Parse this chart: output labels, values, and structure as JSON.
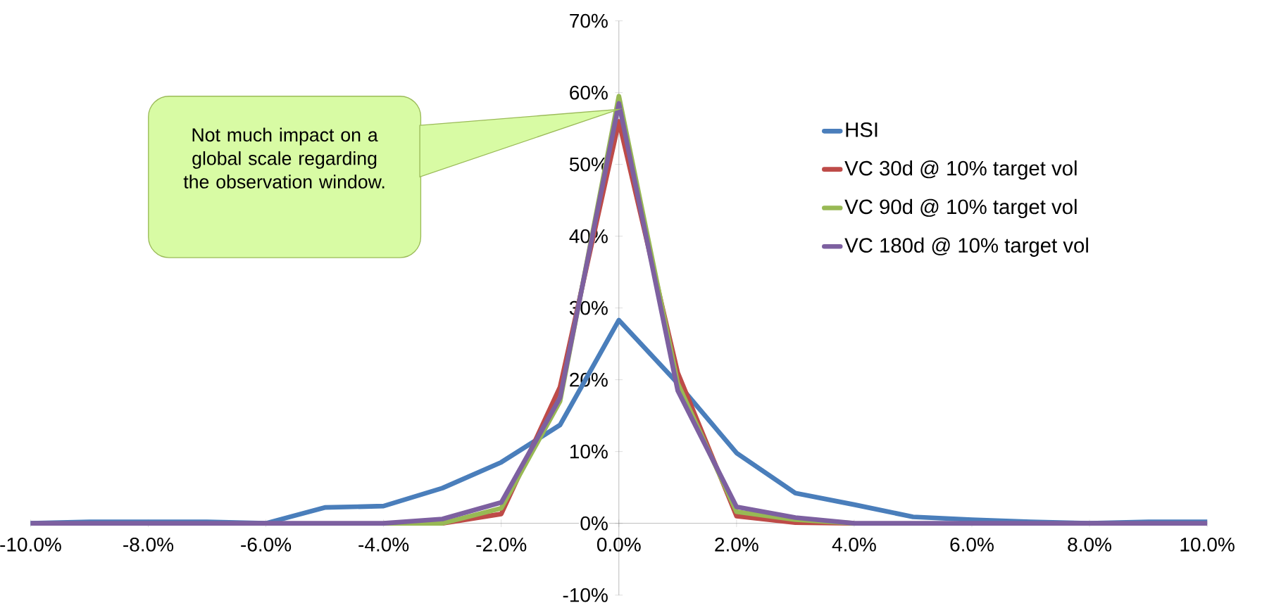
{
  "chart_data": {
    "type": "line",
    "x": [
      -10,
      -9,
      -8,
      -7,
      -6,
      -5,
      -4,
      -3,
      -2,
      -1,
      0,
      1,
      2,
      3,
      4,
      5,
      6,
      7,
      8,
      9,
      10
    ],
    "series": [
      {
        "name": "HSI",
        "color": "#4a7ebb",
        "values": [
          0,
          0.2,
          0.2,
          0.2,
          0,
          2.2,
          2.4,
          4.9,
          8.5,
          13.7,
          28.3,
          19.5,
          9.8,
          4.2,
          2.6,
          0.9,
          0.5,
          0.2,
          0,
          0.2,
          0.2
        ]
      },
      {
        "name": "VC 30d @ 10% target vol",
        "color": "#be4b48",
        "values": [
          null,
          null,
          null,
          null,
          null,
          null,
          null,
          0,
          1.3,
          19,
          56,
          21,
          1.0,
          0.1,
          0,
          null,
          null,
          null,
          null,
          null,
          null
        ]
      },
      {
        "name": "VC 90d @ 10% target vol",
        "color": "#98b954",
        "values": [
          null,
          null,
          null,
          null,
          null,
          null,
          0,
          0,
          2.1,
          17,
          59.5,
          19.5,
          1.6,
          0.5,
          0,
          null,
          null,
          null,
          null,
          null,
          null
        ]
      },
      {
        "name": "VC 180d @ 10% target vol",
        "color": "#7d60a0",
        "values": [
          0,
          0,
          0,
          0,
          0,
          0,
          0,
          0.6,
          2.9,
          17.5,
          58.5,
          18.5,
          2.3,
          0.8,
          0,
          0,
          0,
          0,
          0,
          0,
          0
        ]
      }
    ],
    "xlim": [
      -10,
      10
    ],
    "ylim": [
      -10,
      70
    ],
    "xticks": [
      {
        "value": -10,
        "label": "-10.0%"
      },
      {
        "value": -8,
        "label": "-8.0%"
      },
      {
        "value": -6,
        "label": "-6.0%"
      },
      {
        "value": -4,
        "label": "-4.0%"
      },
      {
        "value": -2,
        "label": "-2.0%"
      },
      {
        "value": 0,
        "label": "0.0%"
      },
      {
        "value": 2,
        "label": "2.0%"
      },
      {
        "value": 4,
        "label": "4.0%"
      },
      {
        "value": 6,
        "label": "6.0%"
      },
      {
        "value": 8,
        "label": "8.0%"
      },
      {
        "value": 10,
        "label": "10.0%"
      }
    ],
    "yticks": [
      {
        "value": -10,
        "label": "-10%"
      },
      {
        "value": 0,
        "label": "0%"
      },
      {
        "value": 10,
        "label": "10%"
      },
      {
        "value": 20,
        "label": "20%"
      },
      {
        "value": 30,
        "label": "30%"
      },
      {
        "value": 40,
        "label": "40%"
      },
      {
        "value": 50,
        "label": "50%"
      },
      {
        "value": 60,
        "label": "60%"
      },
      {
        "value": 70,
        "label": "70%"
      }
    ],
    "annotations": [
      "Not much impact on a global scale regarding the observation window."
    ],
    "grid": false,
    "legend": "right",
    "marker": "none",
    "line_style": "solid"
  }
}
